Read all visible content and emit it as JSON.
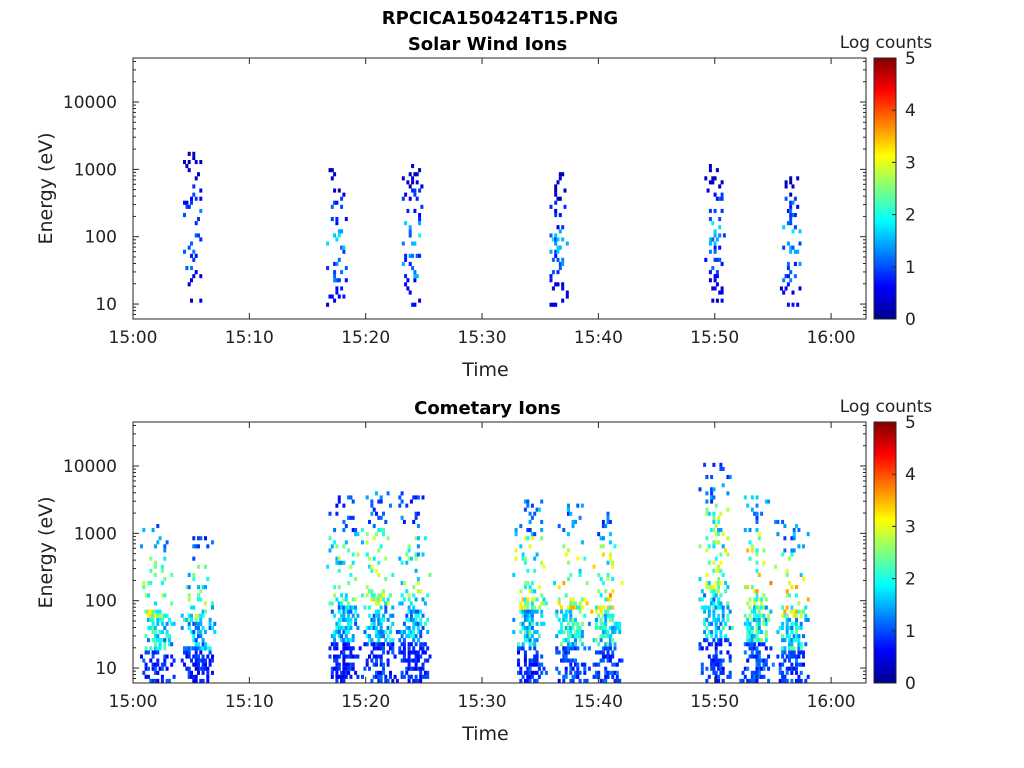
{
  "figure_title": "RPCICA150424T15.PNG",
  "colors": {
    "colormap": [
      "#00008f",
      "#0000ff",
      "#00ffff",
      "#ffff00",
      "#ff0000",
      "#800000"
    ],
    "axis": "#262626",
    "background": "#ffffff"
  },
  "chart_data": [
    {
      "type": "heatmap",
      "title": "Solar Wind Ions",
      "xlabel": "Time",
      "ylabel": "Energy (eV)",
      "x_scale": "time",
      "y_scale": "log",
      "xlim": [
        "15:00",
        "16:03"
      ],
      "ylim": [
        6,
        45000
      ],
      "x_ticks": [
        "15:00",
        "15:10",
        "15:20",
        "15:30",
        "15:40",
        "15:50",
        "16:00"
      ],
      "y_ticks": [
        "10",
        "100",
        "1000",
        "10000"
      ],
      "colorbar": {
        "label": "Log counts",
        "range": [
          0,
          5
        ],
        "ticks": [
          "0",
          "1",
          "2",
          "3",
          "4",
          "5"
        ]
      },
      "bursts": [
        {
          "time": "15:05",
          "counts_log": [
            0.3,
            0.8,
            1.3,
            1.0,
            0.5
          ],
          "energy_range": [
            10,
            1800
          ]
        },
        {
          "time": "15:17.5",
          "counts_log": [
            0.3,
            0.9,
            1.4,
            1.1,
            0.6
          ],
          "energy_range": [
            8,
            1000
          ]
        },
        {
          "time": "15:24",
          "counts_log": [
            0.3,
            0.9,
            1.5,
            1.2,
            0.6
          ],
          "energy_range": [
            8,
            1300
          ]
        },
        {
          "time": "15:36.5",
          "counts_log": [
            0.3,
            0.8,
            1.4,
            1.1,
            0.5
          ],
          "energy_range": [
            8,
            800
          ]
        },
        {
          "time": "15:50",
          "counts_log": [
            0.3,
            0.9,
            1.4,
            1.0,
            0.5
          ],
          "energy_range": [
            10,
            1100
          ]
        },
        {
          "time": "15:56.5",
          "counts_log": [
            0.3,
            1.0,
            1.5,
            1.1,
            0.6
          ],
          "energy_range": [
            8,
            900
          ]
        }
      ]
    },
    {
      "type": "heatmap",
      "title": "Cometary Ions",
      "xlabel": "Time",
      "ylabel": "Energy (eV)",
      "x_scale": "time",
      "y_scale": "log",
      "xlim": [
        "15:00",
        "16:03"
      ],
      "ylim": [
        6,
        45000
      ],
      "x_ticks": [
        "15:00",
        "15:10",
        "15:20",
        "15:30",
        "15:40",
        "15:50",
        "16:00"
      ],
      "y_ticks": [
        "10",
        "100",
        "1000",
        "10000"
      ],
      "colorbar": {
        "label": "Log counts",
        "range": [
          0,
          5
        ],
        "ticks": [
          "0",
          "1",
          "2",
          "3",
          "4",
          "5"
        ]
      },
      "bursts": [
        {
          "time": "15:02",
          "counts_log": [
            1.2,
            2.3,
            2.6,
            1.8,
            0.9
          ],
          "energy_range": [
            6,
            1500
          ]
        },
        {
          "time": "15:05.5",
          "counts_log": [
            1.0,
            2.0,
            2.2,
            1.5,
            0.8
          ],
          "energy_range": [
            6,
            1000
          ]
        },
        {
          "time": "15:18",
          "counts_log": [
            1.0,
            2.2,
            2.3,
            1.6,
            0.8
          ],
          "energy_range": [
            6,
            3500
          ]
        },
        {
          "time": "15:21",
          "counts_log": [
            1.2,
            2.3,
            2.5,
            1.7,
            0.9
          ],
          "energy_range": [
            6,
            4500
          ]
        },
        {
          "time": "15:24",
          "counts_log": [
            1.1,
            2.1,
            2.3,
            1.6,
            0.8
          ],
          "energy_range": [
            6,
            4000
          ]
        },
        {
          "time": "15:34",
          "counts_log": [
            1.3,
            2.4,
            2.7,
            1.9,
            0.9
          ],
          "energy_range": [
            6,
            3000
          ]
        },
        {
          "time": "15:37.5",
          "counts_log": [
            1.3,
            2.5,
            2.8,
            2.0,
            1.0
          ],
          "energy_range": [
            6,
            2500
          ]
        },
        {
          "time": "15:40.5",
          "counts_log": [
            1.3,
            2.6,
            2.9,
            2.0,
            1.0
          ],
          "energy_range": [
            6,
            2000
          ]
        },
        {
          "time": "15:50",
          "counts_log": [
            1.2,
            2.3,
            2.6,
            1.8,
            0.9
          ],
          "energy_range": [
            6,
            11000
          ]
        },
        {
          "time": "15:53.5",
          "counts_log": [
            1.4,
            2.7,
            3.0,
            2.1,
            1.0
          ],
          "energy_range": [
            6,
            3500
          ]
        },
        {
          "time": "15:56.5",
          "counts_log": [
            1.3,
            2.5,
            2.8,
            1.9,
            1.0
          ],
          "energy_range": [
            6,
            1500
          ]
        }
      ]
    }
  ]
}
